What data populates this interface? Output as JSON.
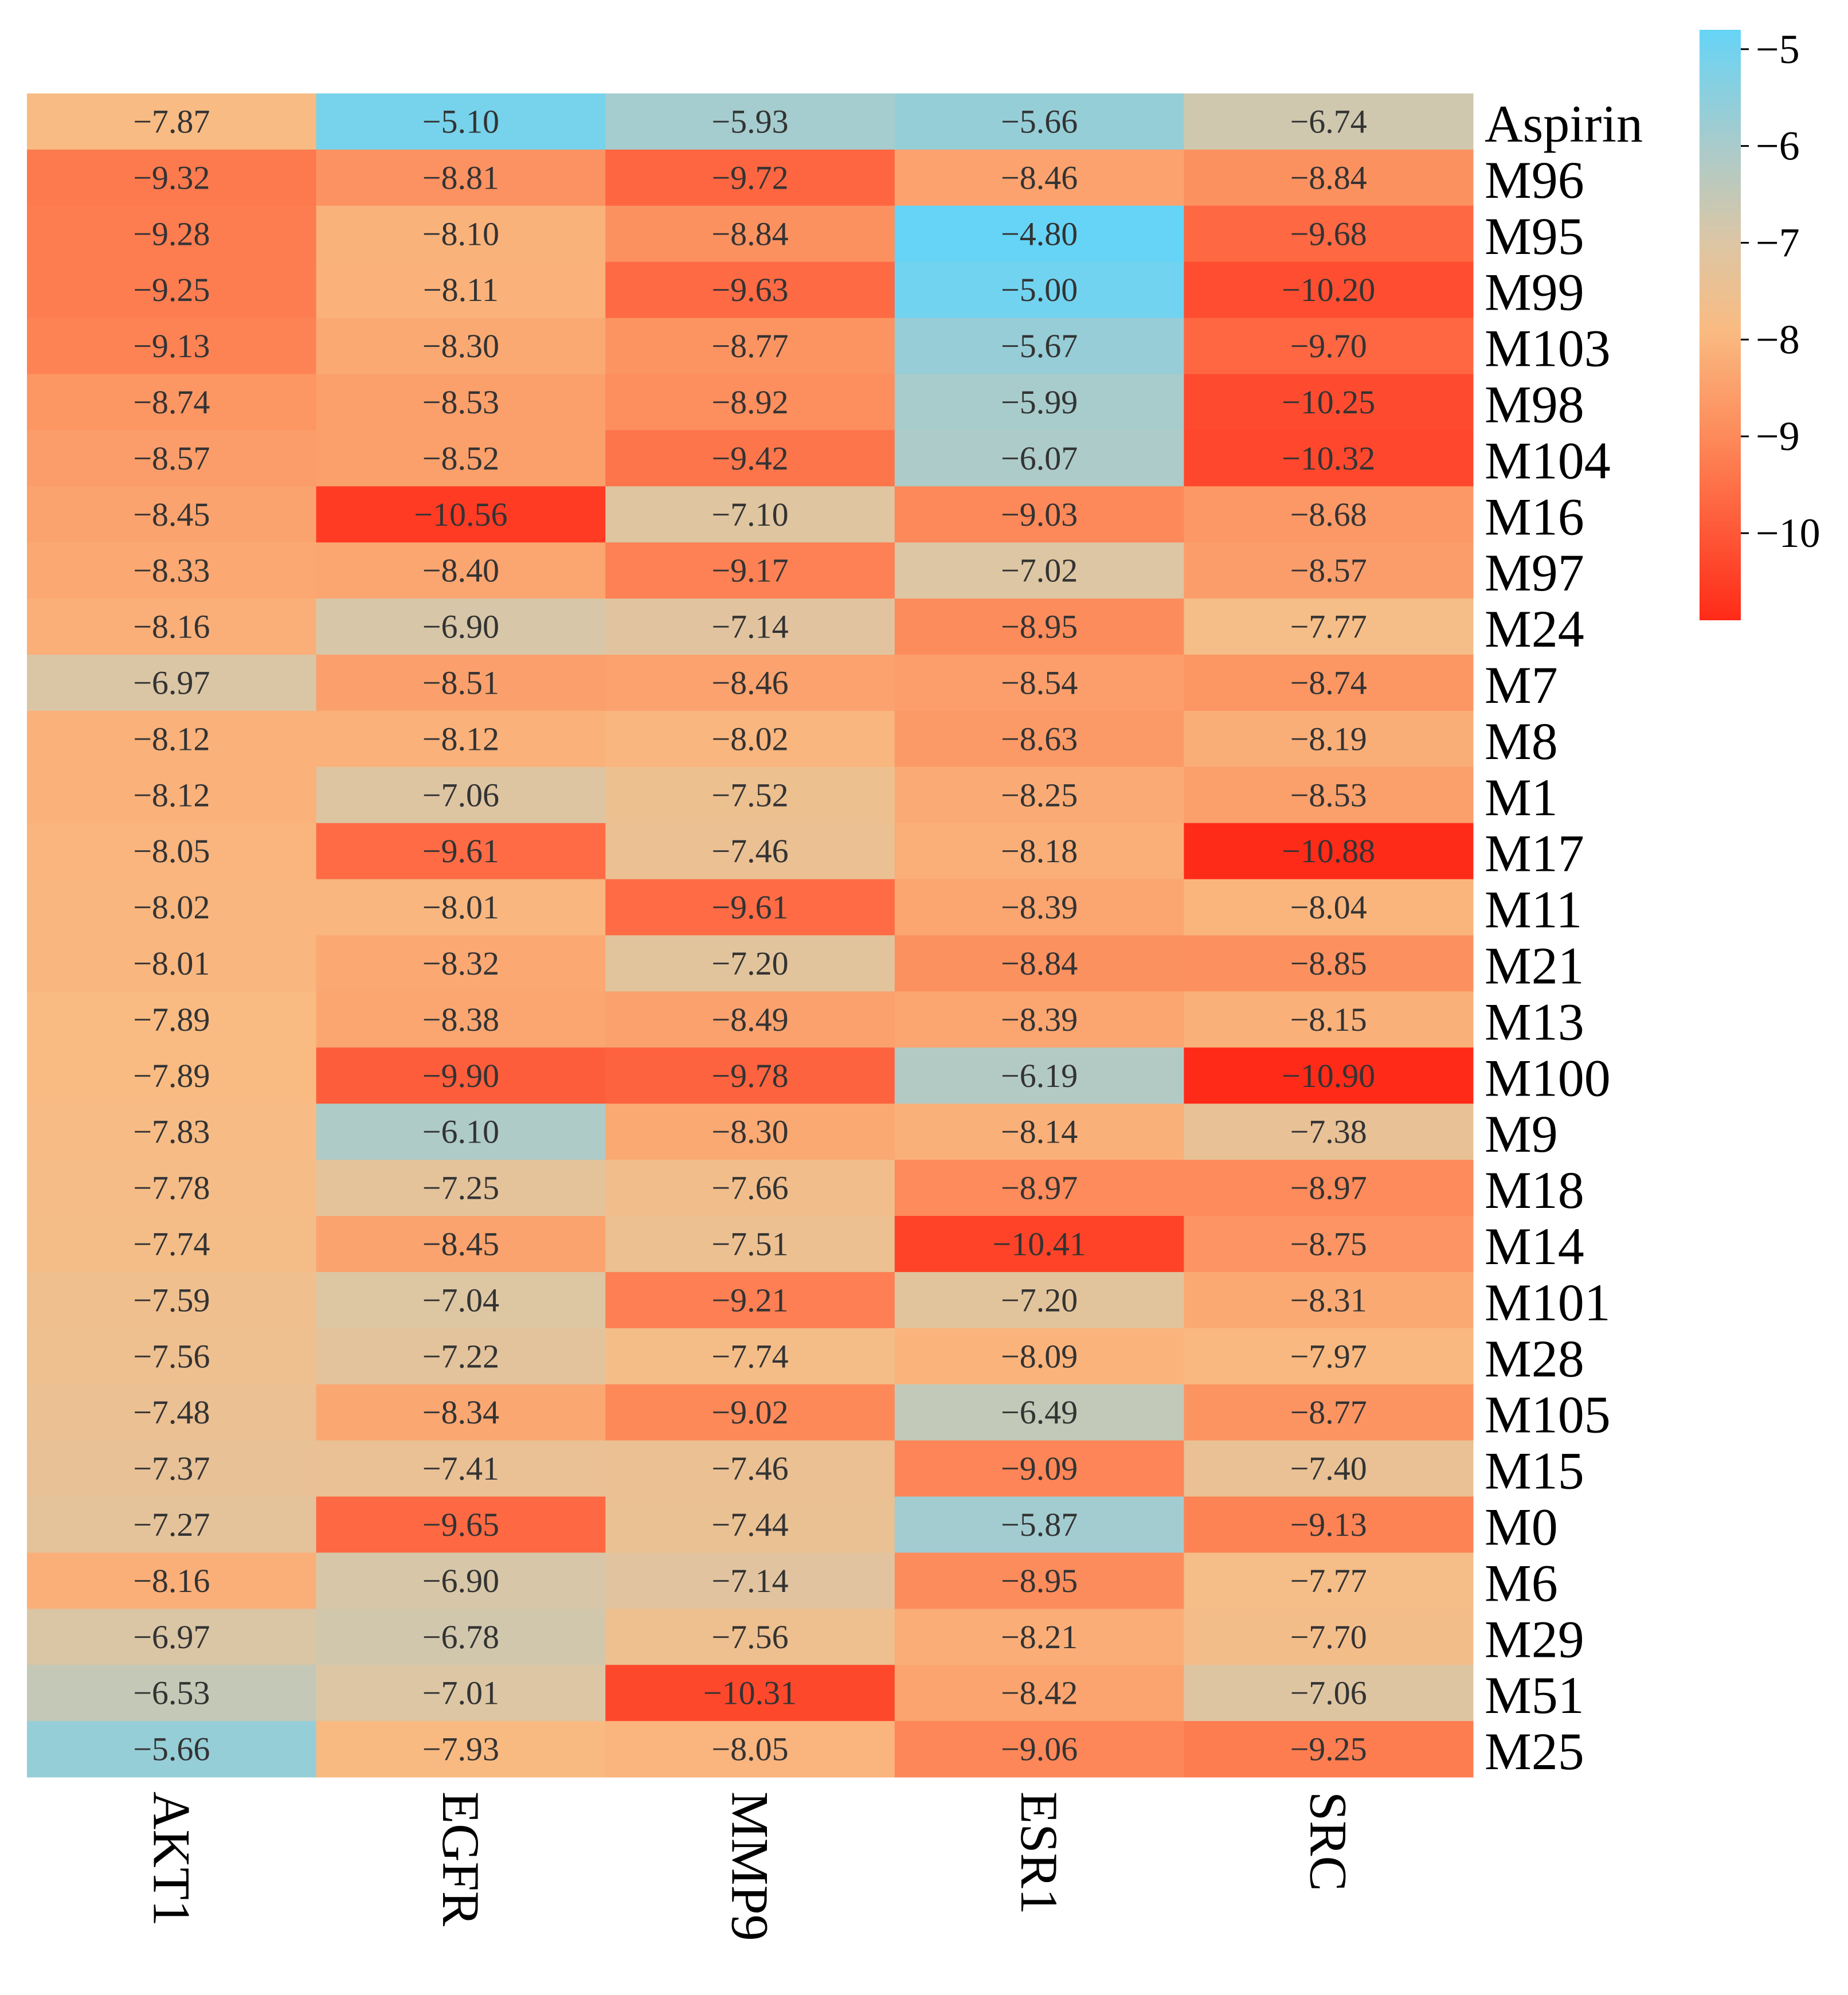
{
  "chart_data": {
    "type": "heatmap",
    "title": "",
    "xlabel": "",
    "ylabel": "",
    "columns": [
      "AKT1",
      "EGFR",
      "MMP9",
      "ESR1",
      "SRC"
    ],
    "rows": [
      "Aspirin",
      "M96",
      "M95",
      "M99",
      "M103",
      "M98",
      "M104",
      "M16",
      "M97",
      "M24",
      "M7",
      "M8",
      "M1",
      "M17",
      "M11",
      "M21",
      "M13",
      "M100",
      "M9",
      "M18",
      "M14",
      "M101",
      "M28",
      "M105",
      "M15",
      "M0",
      "M6",
      "M29",
      "M51",
      "M25"
    ],
    "values": [
      [
        -7.87,
        -5.1,
        -5.93,
        -5.66,
        -6.74
      ],
      [
        -9.32,
        -8.81,
        -9.72,
        -8.46,
        -8.84
      ],
      [
        -9.28,
        -8.1,
        -8.84,
        -4.8,
        -9.68
      ],
      [
        -9.25,
        -8.11,
        -9.63,
        -5.0,
        -10.2
      ],
      [
        -9.13,
        -8.3,
        -8.77,
        -5.67,
        -9.7
      ],
      [
        -8.74,
        -8.53,
        -8.92,
        -5.99,
        -10.25
      ],
      [
        -8.57,
        -8.52,
        -9.42,
        -6.07,
        -10.32
      ],
      [
        -8.45,
        -10.56,
        -7.1,
        -9.03,
        -8.68
      ],
      [
        -8.33,
        -8.4,
        -9.17,
        -7.02,
        -8.57
      ],
      [
        -8.16,
        -6.9,
        -7.14,
        -8.95,
        -7.77
      ],
      [
        -6.97,
        -8.51,
        -8.46,
        -8.54,
        -8.74
      ],
      [
        -8.12,
        -8.12,
        -8.02,
        -8.63,
        -8.19
      ],
      [
        -8.12,
        -7.06,
        -7.52,
        -8.25,
        -8.53
      ],
      [
        -8.05,
        -9.61,
        -7.46,
        -8.18,
        -10.88
      ],
      [
        -8.02,
        -8.01,
        -9.61,
        -8.39,
        -8.04
      ],
      [
        -8.01,
        -8.32,
        -7.2,
        -8.84,
        -8.85
      ],
      [
        -7.89,
        -8.38,
        -8.49,
        -8.39,
        -8.15
      ],
      [
        -7.89,
        -9.9,
        -9.78,
        -6.19,
        -10.9
      ],
      [
        -7.83,
        -6.1,
        -8.3,
        -8.14,
        -7.38
      ],
      [
        -7.78,
        -7.25,
        -7.66,
        -8.97,
        -8.97
      ],
      [
        -7.74,
        -8.45,
        -7.51,
        -10.41,
        -8.75
      ],
      [
        -7.59,
        -7.04,
        -9.21,
        -7.2,
        -8.31
      ],
      [
        -7.56,
        -7.22,
        -7.74,
        -8.09,
        -7.97
      ],
      [
        -7.48,
        -8.34,
        -9.02,
        -6.49,
        -8.77
      ],
      [
        -7.37,
        -7.41,
        -7.46,
        -9.09,
        -7.4
      ],
      [
        -7.27,
        -9.65,
        -7.44,
        -5.87,
        -9.13
      ],
      [
        -8.16,
        -6.9,
        -7.14,
        -8.95,
        -7.77
      ],
      [
        -6.97,
        -6.78,
        -7.56,
        -8.21,
        -7.7
      ],
      [
        -6.53,
        -7.01,
        -10.31,
        -8.42,
        -7.06
      ],
      [
        -5.66,
        -7.93,
        -8.05,
        -9.06,
        -9.25
      ]
    ],
    "value_labels": [
      [
        "−7.87",
        "−5.10",
        "−5.93",
        "−5.66",
        "−6.74"
      ],
      [
        "−9.32",
        "−8.81",
        "−9.72",
        "−8.46",
        "−8.84"
      ],
      [
        "−9.28",
        "−8.10",
        "−8.84",
        "−4.80",
        "−9.68"
      ],
      [
        "−9.25",
        "−8.11",
        "−9.63",
        "−5.00",
        "−10.20"
      ],
      [
        "−9.13",
        "−8.30",
        "−8.77",
        "−5.67",
        "−9.70"
      ],
      [
        "−8.74",
        "−8.53",
        "−8.92",
        "−5.99",
        "−10.25"
      ],
      [
        "−8.57",
        "−8.52",
        "−9.42",
        "−6.07",
        "−10.32"
      ],
      [
        "−8.45",
        "−10.56",
        "−7.10",
        "−9.03",
        "−8.68"
      ],
      [
        "−8.33",
        "−8.40",
        "−9.17",
        "−7.02",
        "−8.57"
      ],
      [
        "−8.16",
        "−6.90",
        "−7.14",
        "−8.95",
        "−7.77"
      ],
      [
        "−6.97",
        "−8.51",
        "−8.46",
        "−8.54",
        "−8.74"
      ],
      [
        "−8.12",
        "−8.12",
        "−8.02",
        "−8.63",
        "−8.19"
      ],
      [
        "−8.12",
        "−7.06",
        "−7.52",
        "−8.25",
        "−8.53"
      ],
      [
        "−8.05",
        "−9.61",
        "−7.46",
        "−8.18",
        "−10.88"
      ],
      [
        "−8.02",
        "−8.01",
        "−9.61",
        "−8.39",
        "−8.04"
      ],
      [
        "−8.01",
        "−8.32",
        "−7.20",
        "−8.84",
        "−8.85"
      ],
      [
        "−7.89",
        "−8.38",
        "−8.49",
        "−8.39",
        "−8.15"
      ],
      [
        "−7.89",
        "−9.90",
        "−9.78",
        "−6.19",
        "−10.90"
      ],
      [
        "−7.83",
        "−6.10",
        "−8.30",
        "−8.14",
        "−7.38"
      ],
      [
        "−7.78",
        "−7.25",
        "−7.66",
        "−8.97",
        "−8.97"
      ],
      [
        "−7.74",
        "−8.45",
        "−7.51",
        "−10.41",
        "−8.75"
      ],
      [
        "−7.59",
        "−7.04",
        "−9.21",
        "−7.20",
        "−8.31"
      ],
      [
        "−7.56",
        "−7.22",
        "−7.74",
        "−8.09",
        "−7.97"
      ],
      [
        "−7.48",
        "−8.34",
        "−9.02",
        "−6.49",
        "−8.77"
      ],
      [
        "−7.37",
        "−7.41",
        "−7.46",
        "−9.09",
        "−7.40"
      ],
      [
        "−7.27",
        "−9.65",
        "−7.44",
        "−5.87",
        "−9.13"
      ],
      [
        "−8.16",
        "−6.90",
        "−7.14",
        "−8.95",
        "−7.77"
      ],
      [
        "−6.97",
        "−6.78",
        "−7.56",
        "−8.21",
        "−7.70"
      ],
      [
        "−6.53",
        "−7.01",
        "−10.31",
        "−8.42",
        "−7.06"
      ],
      [
        "−5.66",
        "−7.93",
        "−8.05",
        "−9.06",
        "−9.25"
      ]
    ],
    "colorbar": {
      "ticks": [
        -5,
        -6,
        -7,
        -8,
        -9,
        -10
      ],
      "tick_labels": [
        "−5",
        "−6",
        "−7",
        "−8",
        "−9",
        "−10"
      ],
      "range": [
        -10.9,
        -4.8
      ],
      "position": "right",
      "colormap": [
        {
          "value": -4.8,
          "color": "#66d4f6"
        },
        {
          "value": -6.0,
          "color": "#a9cbcb"
        },
        {
          "value": -7.0,
          "color": "#dcc6a4"
        },
        {
          "value": -7.9,
          "color": "#f9bb82"
        },
        {
          "value": -9.0,
          "color": "#fd8a5a"
        },
        {
          "value": -10.9,
          "color": "#ff2a18"
        }
      ]
    }
  }
}
